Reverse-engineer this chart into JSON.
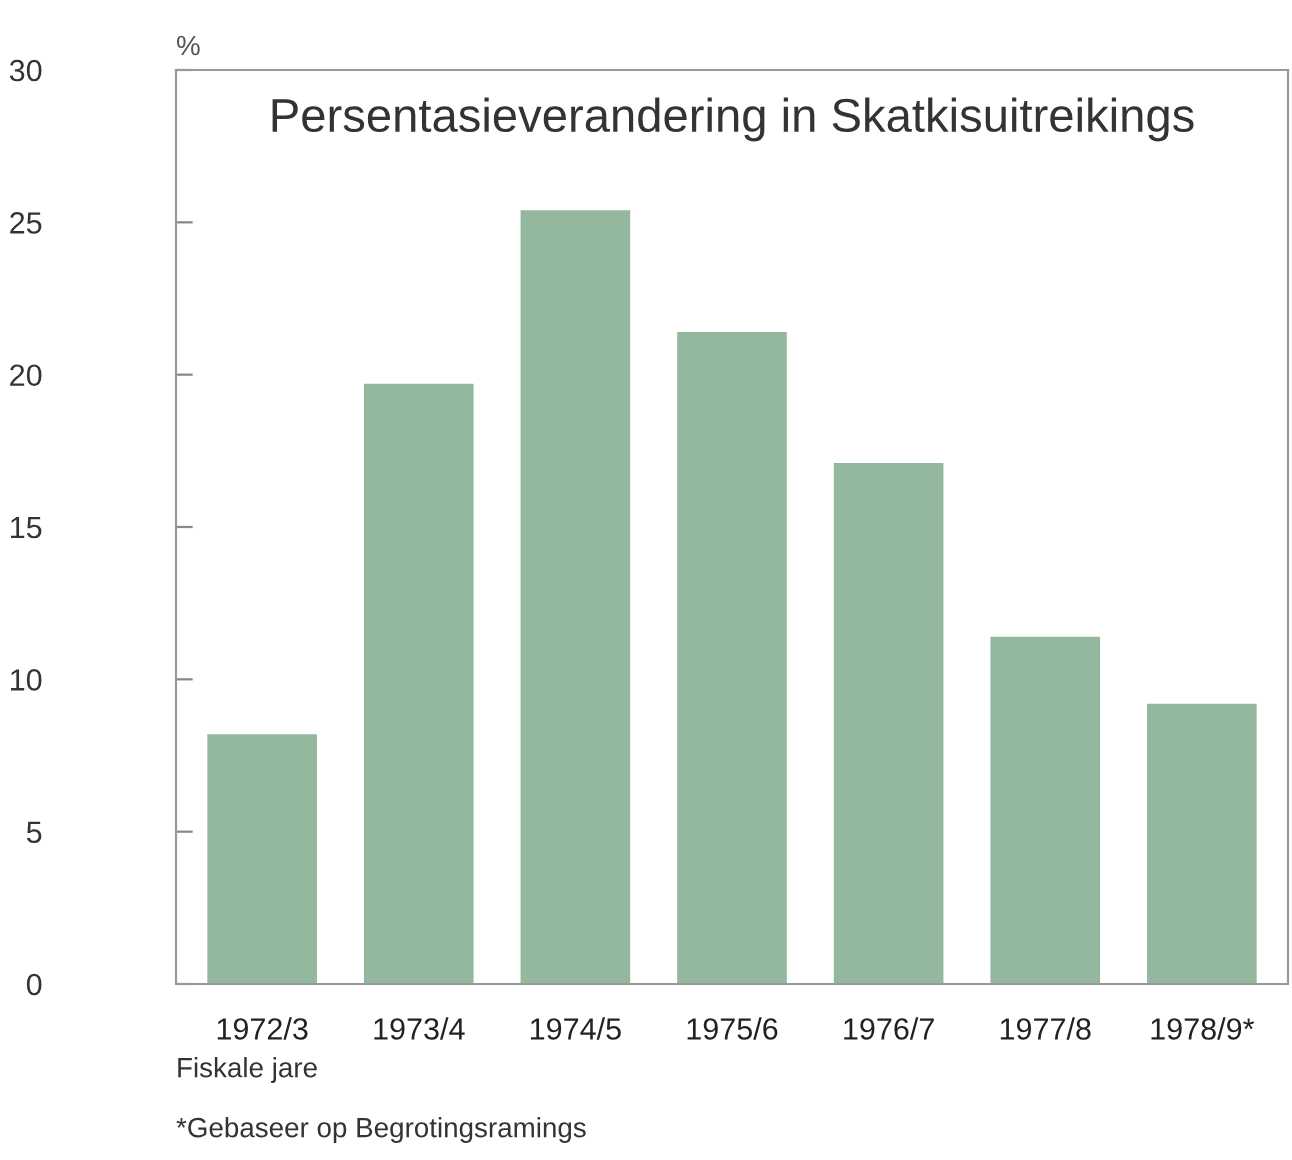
{
  "chart_data": {
    "type": "bar",
    "title": "Persentasieverandering in Skatkisuitreikings",
    "ylabel": "%",
    "xlabel": "Fiskale jare",
    "categories": [
      "1972/3",
      "1973/4",
      "1974/5",
      "1975/6",
      "1976/7",
      "1977/8",
      "1978/9*"
    ],
    "values": [
      8.2,
      19.7,
      25.4,
      21.4,
      17.1,
      11.4,
      9.2
    ],
    "color": "#93b89d",
    "ylim": [
      0,
      30
    ],
    "yticks": [
      0,
      5,
      10,
      15,
      20,
      25,
      30
    ],
    "grid": false,
    "annotations": [
      "*Gebaseer op Begrotingsramings"
    ]
  }
}
